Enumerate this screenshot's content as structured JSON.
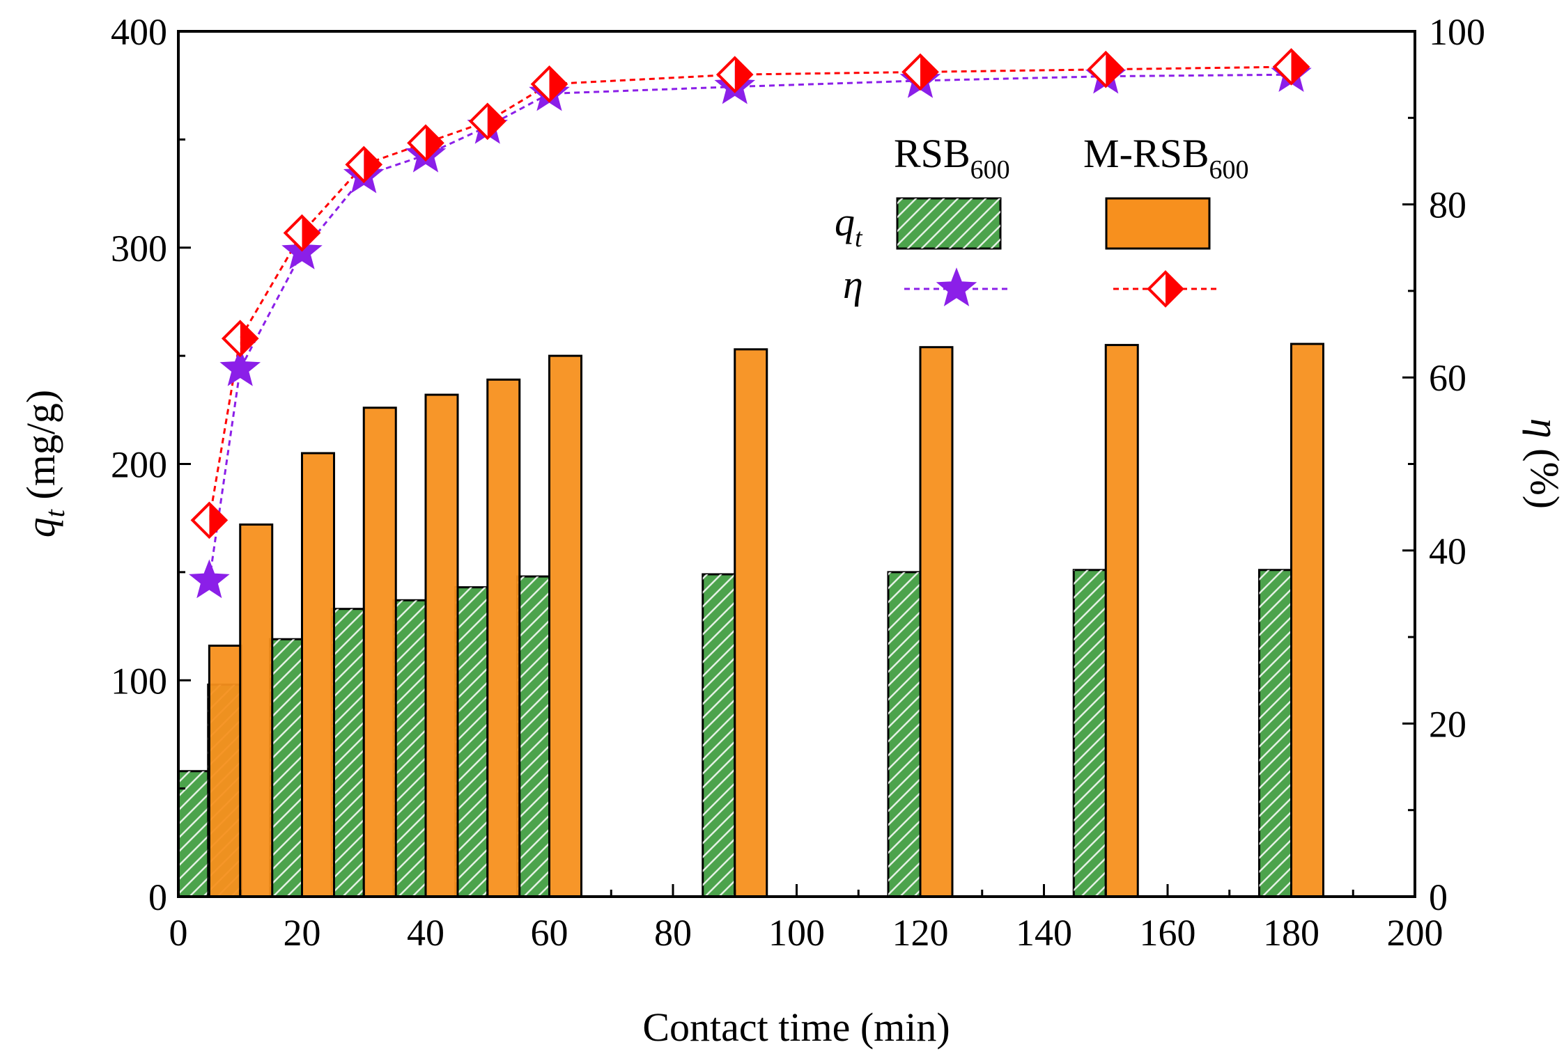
{
  "chart_data": {
    "type": "bar",
    "title": "",
    "xlabel": "Contact time (min)",
    "ylabel_left": {
      "symbol": "q",
      "subscript": "t",
      "unit": " (mg/g)"
    },
    "ylabel_right": {
      "symbol": "η",
      "unit": " (%)"
    },
    "xlim": [
      0,
      200
    ],
    "ylim_left": [
      0,
      400
    ],
    "ylim_right": [
      0,
      100
    ],
    "xticks": [
      "0",
      "20",
      "40",
      "60",
      "80",
      "100",
      "120",
      "140",
      "160",
      "180",
      "200"
    ],
    "yticks_left": [
      "0",
      "100",
      "200",
      "300",
      "400"
    ],
    "yticks_right": [
      "0",
      "20",
      "40",
      "60",
      "80",
      "100"
    ],
    "x": [
      5,
      10,
      20,
      30,
      40,
      50,
      60,
      90,
      120,
      150,
      180
    ],
    "series": [
      {
        "name": "RSB600",
        "kind": "bar",
        "axis": "left",
        "color": "#4ca34c",
        "pattern": "hatch",
        "values": [
          58,
          98,
          119,
          133,
          137,
          143,
          148,
          149,
          150,
          151,
          151
        ]
      },
      {
        "name": "M-RSB600",
        "kind": "bar",
        "axis": "left",
        "color": "#f7901e",
        "values": [
          116,
          172,
          205,
          226,
          232,
          239,
          250,
          253,
          254,
          255,
          255.5
        ]
      },
      {
        "name": "RSB600 η",
        "kind": "line",
        "axis": "right",
        "color": "#8b1fe8",
        "marker": "star",
        "values": [
          36.5,
          61,
          74.5,
          83.3,
          85.7,
          89,
          92.8,
          93.6,
          94.3,
          94.8,
          95
        ]
      },
      {
        "name": "M-RSB600 η",
        "kind": "line",
        "axis": "right",
        "color": "#ff0000",
        "marker": "half-filled-diamond",
        "values": [
          43.5,
          64.5,
          76.7,
          84.6,
          87.1,
          89.6,
          93.9,
          95,
          95.3,
          95.6,
          95.9
        ]
      }
    ],
    "legend": {
      "placement": "top-right",
      "col1": {
        "main": "RSB",
        "sub": "600"
      },
      "col2": {
        "main": "M-RSB",
        "sub": "600"
      },
      "row_qt": {
        "symbol": "q",
        "subscript": "t"
      },
      "row_eta": {
        "symbol": "η"
      }
    }
  }
}
